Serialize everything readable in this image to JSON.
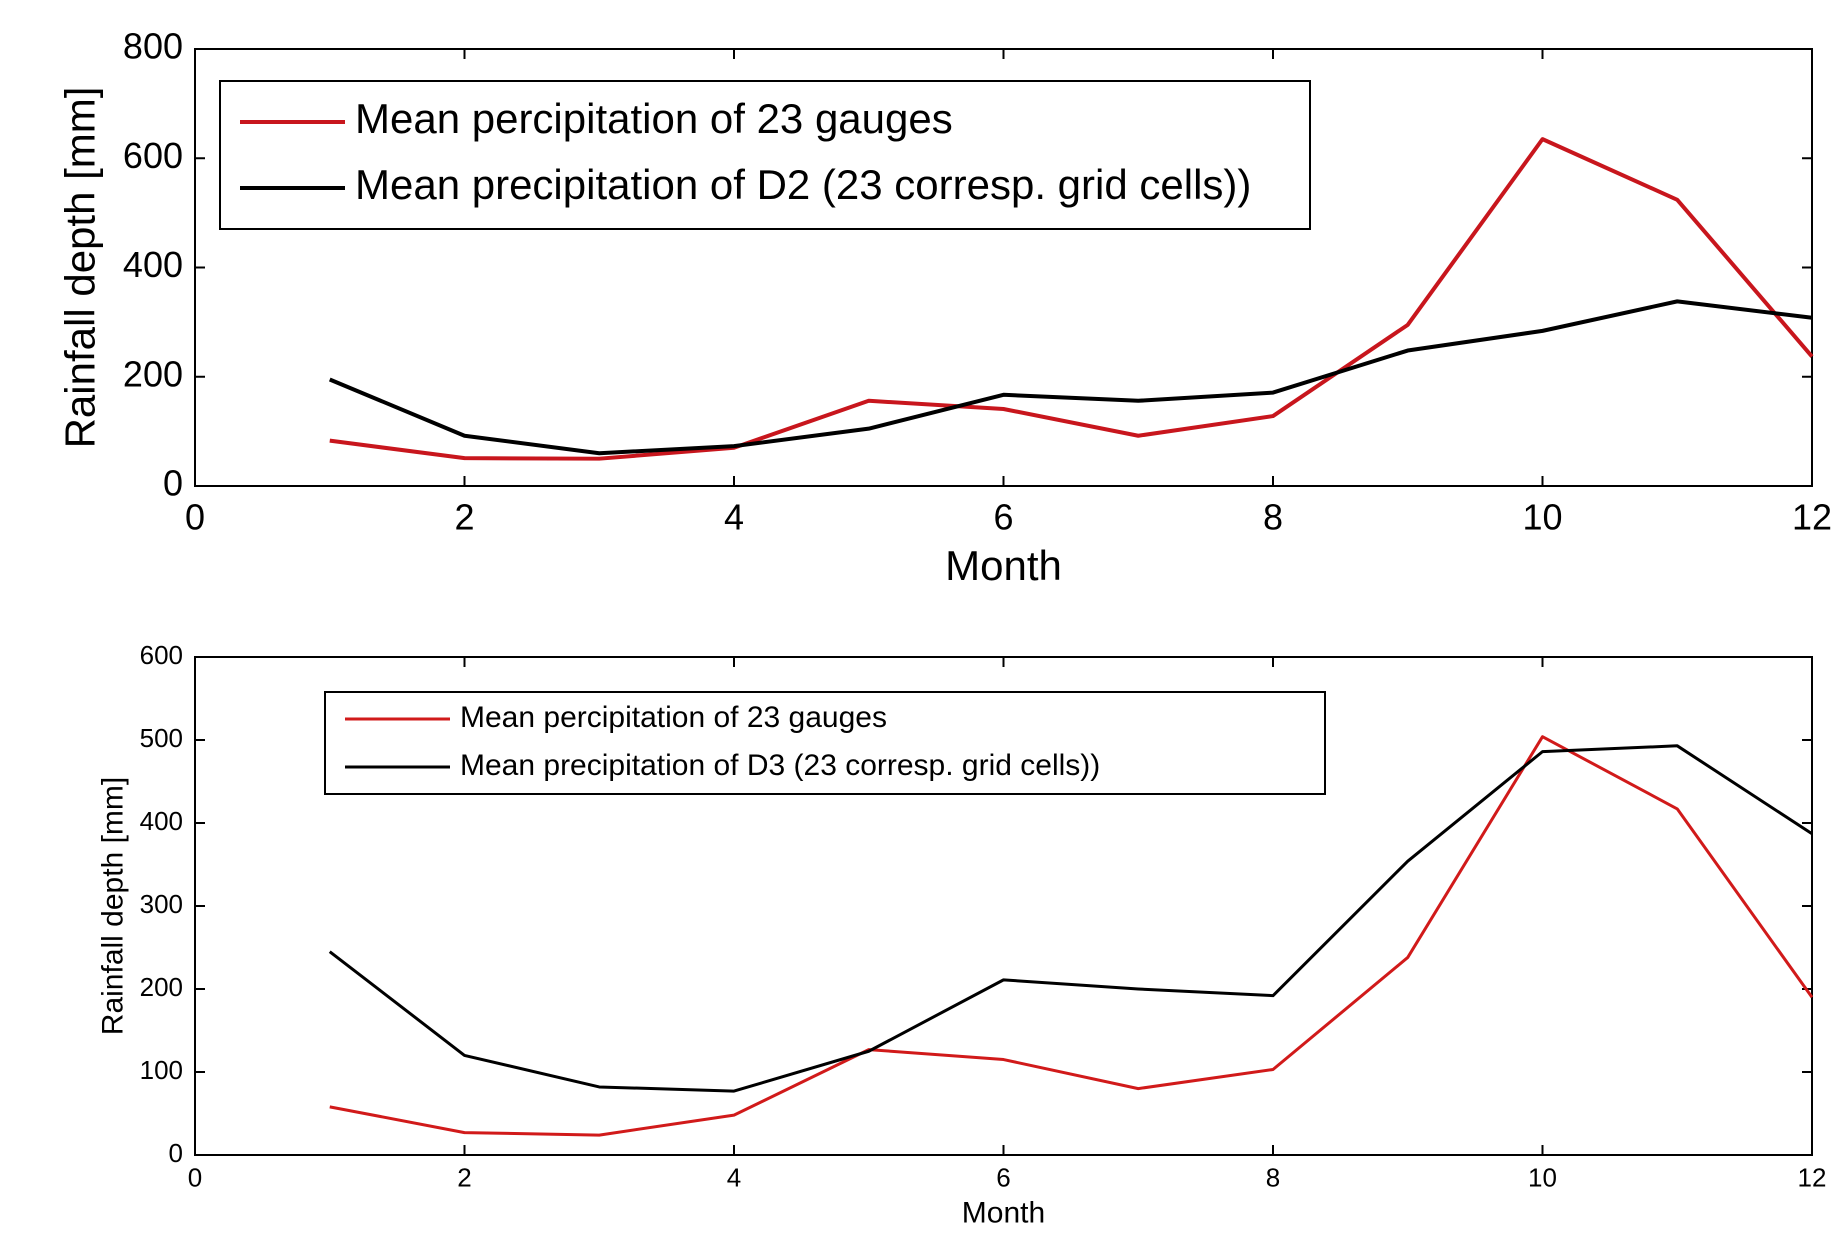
{
  "chart_data": [
    {
      "type": "line",
      "x": [
        1,
        2,
        3,
        4,
        5,
        6,
        7,
        8,
        9,
        10,
        11,
        12
      ],
      "series": [
        {
          "name": "Mean percipitation of 23 gauges",
          "color": "#c8161d",
          "values": [
            83,
            51,
            50,
            70,
            156,
            141,
            92,
            128,
            295,
            635,
            524,
            237
          ]
        },
        {
          "name": "Mean precipitation of D2 (23 corresp. grid cells))",
          "color": "#000000",
          "values": [
            195,
            92,
            60,
            73,
            105,
            167,
            156,
            171,
            248,
            284,
            338,
            308
          ]
        }
      ],
      "xlabel": "Month",
      "ylabel": "Rainfall depth [mm]",
      "xlim": [
        0,
        12
      ],
      "xticks": [
        0,
        2,
        4,
        6,
        8,
        10,
        12
      ],
      "ylim": [
        0,
        800
      ],
      "yticks": [
        0,
        200,
        400,
        600,
        800
      ],
      "legend": "upper left",
      "grid": false
    },
    {
      "type": "line",
      "x": [
        1,
        2,
        3,
        4,
        5,
        6,
        7,
        8,
        9,
        10,
        11,
        12
      ],
      "series": [
        {
          "name": "Mean percipitation of 23 gauges",
          "color": "#d11a1a",
          "values": [
            58,
            27,
            24,
            48,
            127,
            115,
            80,
            103,
            238,
            504,
            417,
            190
          ]
        },
        {
          "name": "Mean precipitation of D3 (23 corresp. grid cells))",
          "color": "#000000",
          "values": [
            245,
            120,
            82,
            77,
            125,
            211,
            200,
            192,
            354,
            486,
            493,
            387
          ]
        }
      ],
      "xlabel": "Month",
      "ylabel": "Rainfall depth [mm]",
      "xlim": [
        0,
        12
      ],
      "xticks": [
        0,
        2,
        4,
        6,
        8,
        10,
        12
      ],
      "ylim": [
        0,
        600
      ],
      "yticks": [
        0,
        100,
        200,
        300,
        400,
        500,
        600
      ],
      "legend": "upper left",
      "grid": false
    }
  ]
}
